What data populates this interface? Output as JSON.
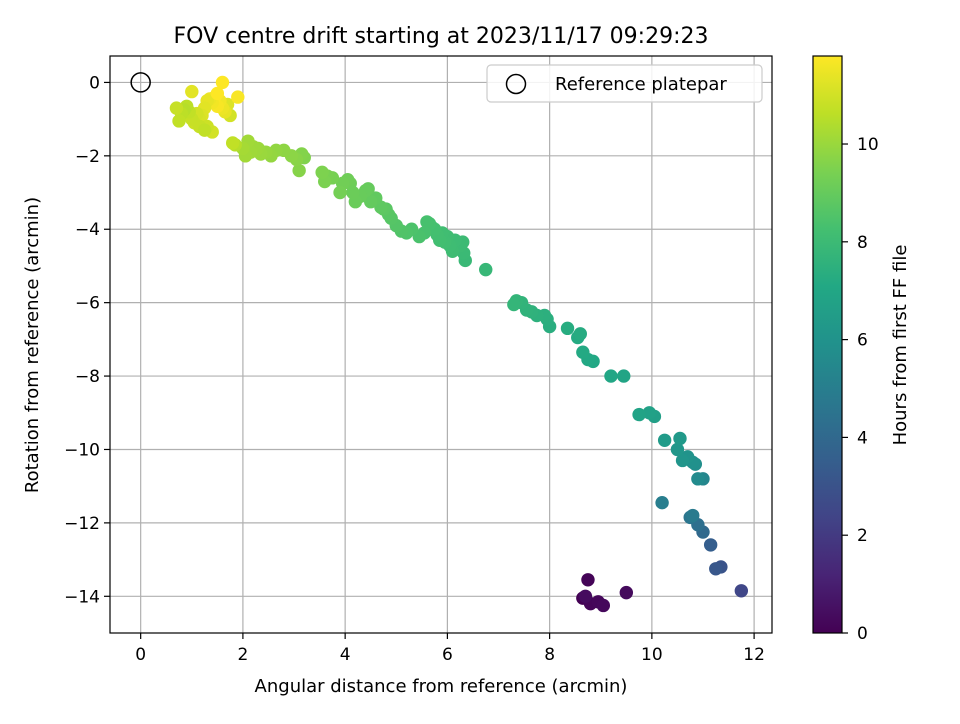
{
  "chart_data": {
    "type": "scatter",
    "title": "FOV centre drift starting at 2023/11/17 09:29:23",
    "xlabel": "Angular distance from reference (arcmin)",
    "ylabel": "Rotation from reference (arcmin)",
    "xlim": [
      -0.6,
      12.35
    ],
    "ylim": [
      -15.0,
      0.72
    ],
    "xticks": [
      0,
      2,
      4,
      6,
      8,
      10,
      12
    ],
    "yticks": [
      0,
      -2,
      -4,
      -6,
      -8,
      -10,
      -12,
      -14
    ],
    "grid": true,
    "legend": {
      "position": "top-right",
      "entries": [
        "Reference platepar"
      ]
    },
    "colorbar": {
      "label": "Hours from first FF file",
      "min": 0,
      "max": 11.8,
      "ticks": [
        0,
        2,
        4,
        6,
        8,
        10
      ],
      "colormap": "viridis"
    },
    "reference_point": {
      "x": 0,
      "y": 0,
      "label": "Reference platepar"
    },
    "series": [
      {
        "x": [
          8.65,
          8.75,
          8.8,
          8.95,
          9.05,
          9.5,
          8.7,
          11.75,
          11.35,
          11.25,
          11.15,
          11.0,
          10.9,
          10.75,
          10.8,
          10.2,
          11.0,
          10.9,
          10.85,
          10.8,
          10.7,
          10.6,
          10.5,
          10.55,
          10.25,
          10.05,
          9.95,
          9.75,
          9.45,
          9.2,
          8.85,
          8.75,
          8.65,
          8.55,
          8.6,
          8.35,
          8.0,
          7.95,
          7.9,
          7.75,
          7.65,
          7.55,
          7.45,
          7.35,
          7.3,
          6.75,
          6.35,
          6.32,
          6.3,
          6.25,
          6.15,
          6.1,
          6.05,
          6.0,
          5.95,
          5.9,
          5.85,
          5.8,
          5.75,
          5.7,
          5.65,
          5.6,
          5.55,
          5.45,
          5.3,
          5.2,
          5.1,
          5.0,
          4.9,
          4.85,
          4.8,
          4.75,
          4.7,
          4.6,
          4.5,
          4.45,
          4.4,
          4.3,
          4.2,
          4.15,
          4.1,
          4.05,
          3.95,
          3.9,
          3.75,
          3.65,
          3.6,
          3.55,
          3.2,
          3.15,
          3.1,
          3.05,
          2.95,
          2.8,
          2.65,
          2.55,
          2.45,
          2.35,
          2.3,
          2.25,
          2.2,
          2.15,
          2.1,
          2.05,
          2.0,
          1.85,
          1.8,
          1.75,
          1.7,
          1.65,
          1.6,
          1.55,
          1.5,
          1.45,
          1.4,
          1.35,
          1.3,
          1.25,
          1.2,
          1.15,
          1.1,
          1.05,
          1.0,
          0.95,
          0.9,
          0.85,
          0.8,
          0.75,
          0.7,
          1.5,
          1.6,
          1.9,
          1.0,
          1.4,
          1.3,
          1.15,
          1.25
        ],
        "y": [
          -14.05,
          -13.55,
          -14.2,
          -14.15,
          -14.25,
          -13.9,
          -14.0,
          -13.85,
          -13.2,
          -13.25,
          -12.6,
          -12.25,
          -12.05,
          -11.85,
          -11.8,
          -11.45,
          -10.8,
          -10.8,
          -10.4,
          -10.35,
          -10.2,
          -10.3,
          -10.0,
          -9.7,
          -9.75,
          -9.1,
          -9.0,
          -9.05,
          -8.0,
          -8.0,
          -7.6,
          -7.55,
          -7.35,
          -6.95,
          -6.85,
          -6.7,
          -6.65,
          -6.45,
          -6.35,
          -6.35,
          -6.25,
          -6.2,
          -6.0,
          -5.95,
          -6.05,
          -5.1,
          -4.85,
          -4.65,
          -4.35,
          -4.45,
          -4.3,
          -4.6,
          -4.45,
          -4.2,
          -4.35,
          -4.1,
          -4.3,
          -4.15,
          -4.0,
          -3.95,
          -3.85,
          -3.8,
          -4.1,
          -4.2,
          -4.0,
          -4.1,
          -4.05,
          -3.9,
          -3.7,
          -3.6,
          -3.45,
          -3.45,
          -3.4,
          -3.15,
          -3.25,
          -2.9,
          -2.95,
          -3.1,
          -3.25,
          -3.0,
          -2.75,
          -2.65,
          -2.75,
          -3.0,
          -2.6,
          -2.55,
          -2.7,
          -2.45,
          -2.05,
          -1.95,
          -2.4,
          -2.1,
          -2.0,
          -1.85,
          -1.85,
          -2.0,
          -1.9,
          -1.95,
          -1.8,
          -1.85,
          -1.75,
          -1.9,
          -1.6,
          -2.0,
          -1.8,
          -1.7,
          -1.65,
          -0.9,
          -0.6,
          -0.8,
          -0.7,
          -0.5,
          -0.65,
          -0.4,
          -0.55,
          -0.45,
          -0.5,
          -0.7,
          -0.9,
          -1.0,
          -0.85,
          -1.1,
          -1.0,
          -0.8,
          -0.65,
          -0.75,
          -0.85,
          -1.05,
          -0.7,
          -0.3,
          -0.0,
          -0.4,
          -0.25,
          -1.35,
          -1.2,
          -1.2,
          -1.3
        ],
        "t": [
          0.0,
          0.1,
          0.15,
          0.2,
          0.25,
          0.3,
          0.35,
          2.5,
          3.0,
          3.2,
          3.5,
          4.0,
          4.3,
          4.6,
          4.8,
          5.0,
          5.4,
          5.6,
          5.8,
          5.9,
          6.0,
          6.1,
          6.2,
          6.3,
          6.4,
          6.6,
          6.7,
          6.8,
          6.9,
          7.0,
          7.05,
          7.1,
          7.15,
          7.2,
          7.25,
          7.3,
          7.35,
          7.4,
          7.45,
          7.5,
          7.55,
          7.6,
          7.65,
          7.7,
          7.75,
          7.85,
          7.9,
          7.95,
          8.0,
          8.02,
          8.05,
          8.07,
          8.1,
          8.12,
          8.15,
          8.17,
          8.2,
          8.22,
          8.25,
          8.27,
          8.3,
          8.32,
          8.35,
          8.4,
          8.45,
          8.5,
          8.55,
          8.6,
          8.65,
          8.7,
          8.75,
          8.8,
          8.85,
          8.9,
          8.95,
          9.0,
          9.02,
          9.05,
          9.1,
          9.12,
          9.15,
          9.2,
          9.25,
          9.3,
          9.35,
          9.4,
          9.45,
          9.5,
          9.55,
          9.6,
          9.65,
          9.7,
          9.75,
          9.8,
          9.85,
          9.9,
          9.95,
          10.0,
          10.02,
          10.05,
          10.07,
          10.1,
          10.12,
          10.15,
          10.2,
          10.5,
          10.7,
          11.0,
          11.2,
          11.4,
          11.5,
          11.6,
          11.7,
          11.75,
          11.6,
          11.5,
          11.4,
          11.3,
          11.2,
          11.1,
          11.0,
          10.9,
          10.8,
          10.7,
          10.6,
          10.5,
          10.6,
          10.7,
          10.8,
          11.8,
          11.8,
          11.7,
          11.3,
          11.0,
          10.9,
          10.8,
          10.7
        ]
      }
    ]
  }
}
